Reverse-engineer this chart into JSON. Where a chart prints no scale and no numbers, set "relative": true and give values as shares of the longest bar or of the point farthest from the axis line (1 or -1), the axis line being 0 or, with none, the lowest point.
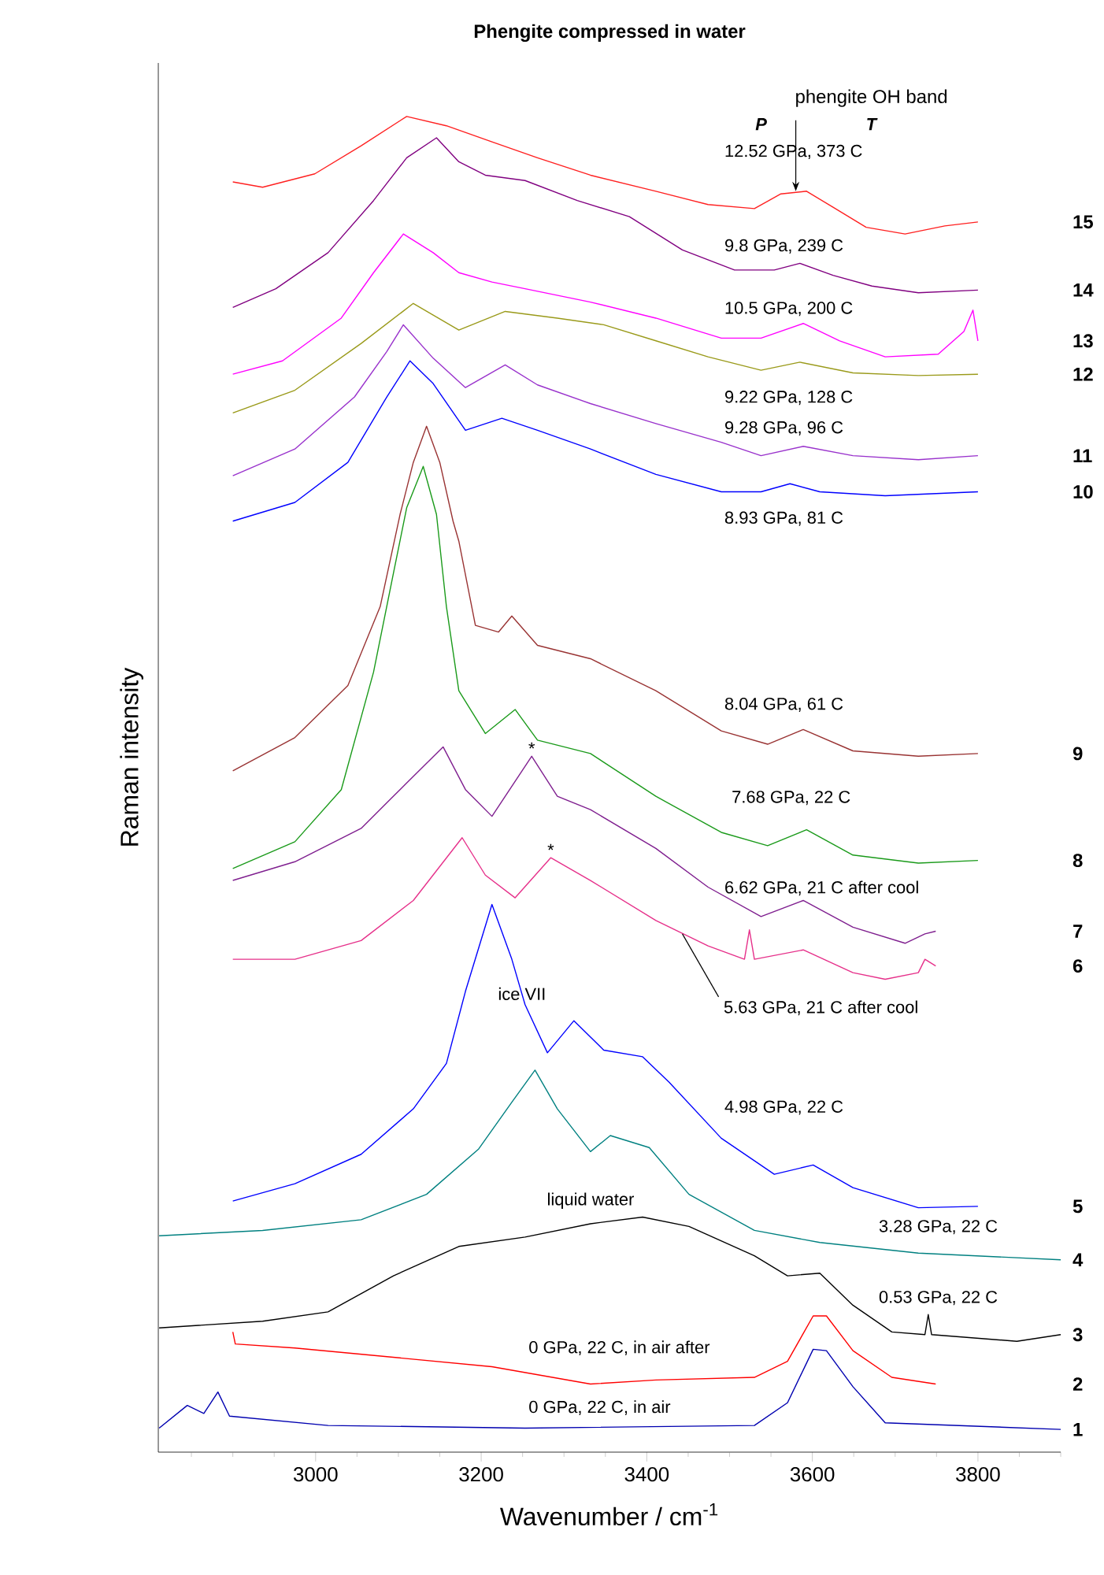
{
  "chart_data": {
    "type": "line",
    "title": "Phengite compressed in water",
    "xlabel": "Wavenumber / cm$^{-1}$",
    "ylabel": "Raman intensity",
    "relative": true,
    "xlim": [
      2810,
      3900
    ],
    "xticks": [
      {
        "value": 2850,
        "label": null
      },
      {
        "value": 2900,
        "label": null
      },
      {
        "value": 2950,
        "label": null
      },
      3000,
      {
        "value": 3050,
        "label": null
      },
      {
        "value": 3100,
        "label": null
      },
      {
        "value": 3150,
        "label": null
      },
      3200,
      {
        "value": 3250,
        "label": null
      },
      {
        "value": 3300,
        "label": null
      },
      {
        "value": 3350,
        "label": null
      },
      3400,
      {
        "value": 3450,
        "label": null
      },
      {
        "value": 3500,
        "label": null
      },
      {
        "value": 3550,
        "label": null
      },
      3600,
      {
        "value": 3650,
        "label": null
      },
      {
        "value": 3700,
        "label": null
      },
      {
        "value": 3750,
        "label": null
      },
      3800,
      {
        "value": 3850,
        "label": null
      },
      {
        "value": 3900,
        "label": null
      }
    ],
    "series": [
      {
        "name": "1",
        "color": "#0000b0",
        "x": [
          2811,
          2845,
          2865,
          2882,
          2896,
          3015,
          3253,
          3530,
          3570,
          3601,
          3617,
          3649,
          3688,
          3900
        ],
        "values": [
          0.018,
          0.035,
          0.029,
          0.045,
          0.027,
          0.02,
          0.018,
          0.02,
          0.037,
          0.077,
          0.076,
          0.049,
          0.022,
          0.017
        ]
      },
      {
        "name": "2",
        "color": "#ff0000",
        "x": [
          2900,
          2903,
          2975,
          3094,
          3213,
          3332,
          3411,
          3530,
          3570,
          3601,
          3617,
          3649,
          3696,
          3749
        ],
        "values": [
          0.09,
          0.081,
          0.078,
          0.071,
          0.064,
          0.051,
          0.054,
          0.056,
          0.068,
          0.102,
          0.102,
          0.076,
          0.056,
          0.051
        ]
      },
      {
        "name": "3",
        "color": "#000000",
        "x": [
          2811,
          2936,
          3015,
          3094,
          3173,
          3253,
          3332,
          3395,
          3451,
          3530,
          3570,
          3609,
          3649,
          3696,
          3736,
          3740,
          3744,
          3847,
          3900
        ],
        "values": [
          0.093,
          0.098,
          0.105,
          0.132,
          0.154,
          0.161,
          0.171,
          0.176,
          0.169,
          0.147,
          0.132,
          0.134,
          0.11,
          0.09,
          0.088,
          0.103,
          0.088,
          0.083,
          0.088
        ]
      },
      {
        "name": "4",
        "color": "#008080",
        "x": [
          2811,
          2936,
          3055,
          3134,
          3197,
          3237,
          3265,
          3292,
          3332,
          3356,
          3403,
          3451,
          3530,
          3609,
          3728,
          3900
        ],
        "values": [
          0.162,
          0.166,
          0.174,
          0.193,
          0.227,
          0.262,
          0.286,
          0.257,
          0.225,
          0.237,
          0.228,
          0.193,
          0.166,
          0.157,
          0.149,
          0.144
        ]
      },
      {
        "name": "5",
        "color": "#0000ff",
        "x": [
          2900,
          2975,
          3055,
          3118,
          3158,
          3181,
          3213,
          3237,
          3253,
          3280,
          3312,
          3348,
          3395,
          3427,
          3490,
          3554,
          3601,
          3649,
          3728,
          3800
        ],
        "values": [
          0.188,
          0.201,
          0.223,
          0.257,
          0.291,
          0.345,
          0.41,
          0.369,
          0.335,
          0.299,
          0.323,
          0.301,
          0.296,
          0.277,
          0.235,
          0.208,
          0.215,
          0.198,
          0.183,
          0.184
        ]
      },
      {
        "name": "6",
        "color": "#e6308a",
        "x": [
          2900,
          2975,
          3055,
          3118,
          3177,
          3205,
          3241,
          3284,
          3332,
          3411,
          3474,
          3518,
          3524,
          3530,
          3589,
          3649,
          3688,
          3728,
          3736,
          3749
        ],
        "values": [
          0.369,
          0.369,
          0.383,
          0.413,
          0.46,
          0.432,
          0.415,
          0.445,
          0.428,
          0.398,
          0.379,
          0.369,
          0.391,
          0.369,
          0.376,
          0.359,
          0.354,
          0.359,
          0.369,
          0.364
        ]
      },
      {
        "name": "7",
        "color": "#7f1f8f",
        "x": [
          2900,
          2975,
          3055,
          3110,
          3154,
          3181,
          3213,
          3261,
          3292,
          3332,
          3411,
          3474,
          3538,
          3589,
          3649,
          3712,
          3736,
          3749
        ],
        "values": [
          0.428,
          0.442,
          0.467,
          0.501,
          0.528,
          0.496,
          0.476,
          0.521,
          0.491,
          0.481,
          0.452,
          0.423,
          0.401,
          0.413,
          0.393,
          0.381,
          0.388,
          0.39
        ]
      },
      {
        "name": "8",
        "color": "#1a9a1a",
        "x": [
          2900,
          2975,
          3031,
          3070,
          3094,
          3110,
          3130,
          3146,
          3158,
          3173,
          3205,
          3241,
          3268,
          3332,
          3411,
          3490,
          3546,
          3593,
          3649,
          3728,
          3800
        ],
        "values": [
          0.437,
          0.457,
          0.496,
          0.584,
          0.658,
          0.707,
          0.738,
          0.702,
          0.633,
          0.57,
          0.538,
          0.556,
          0.533,
          0.523,
          0.491,
          0.464,
          0.454,
          0.466,
          0.447,
          0.441,
          0.443
        ]
      },
      {
        "name": "9",
        "color": "#993333",
        "x": [
          2900,
          2975,
          3039,
          3078,
          3102,
          3118,
          3134,
          3150,
          3166,
          3173,
          3193,
          3221,
          3237,
          3268,
          3332,
          3411,
          3490,
          3546,
          3589,
          3649,
          3728,
          3800
        ],
        "values": [
          0.51,
          0.535,
          0.574,
          0.633,
          0.702,
          0.741,
          0.768,
          0.741,
          0.697,
          0.682,
          0.619,
          0.614,
          0.626,
          0.604,
          0.594,
          0.57,
          0.54,
          0.53,
          0.541,
          0.525,
          0.521,
          0.523
        ]
      },
      {
        "name": "10",
        "color": "#0000ff",
        "x": [
          2900,
          2975,
          3039,
          3086,
          3114,
          3142,
          3181,
          3225,
          3268,
          3332,
          3411,
          3490,
          3538,
          3573,
          3609,
          3688,
          3800
        ],
        "values": [
          0.697,
          0.711,
          0.741,
          0.79,
          0.817,
          0.8,
          0.765,
          0.774,
          0.765,
          0.751,
          0.732,
          0.719,
          0.719,
          0.725,
          0.719,
          0.716,
          0.719
        ]
      },
      {
        "name": "11",
        "color": "#9932cc",
        "x": [
          2900,
          2975,
          3047,
          3086,
          3106,
          3142,
          3181,
          3229,
          3268,
          3332,
          3411,
          3490,
          3538,
          3589,
          3649,
          3728,
          3800
        ],
        "values": [
          0.731,
          0.751,
          0.79,
          0.824,
          0.844,
          0.819,
          0.797,
          0.814,
          0.799,
          0.785,
          0.77,
          0.756,
          0.746,
          0.753,
          0.746,
          0.743,
          0.746
        ]
      },
      {
        "name": "12",
        "color": "#9a9a1a",
        "x": [
          2900,
          2975,
          3055,
          3118,
          3173,
          3229,
          3292,
          3348,
          3411,
          3474,
          3538,
          3585,
          3649,
          3728,
          3800
        ],
        "values": [
          0.778,
          0.795,
          0.83,
          0.86,
          0.84,
          0.854,
          0.849,
          0.844,
          0.832,
          0.82,
          0.81,
          0.816,
          0.808,
          0.806,
          0.807
        ]
      },
      {
        "name": "13",
        "color": "#ff00ff",
        "x": [
          2900,
          2960,
          3031,
          3070,
          3106,
          3142,
          3173,
          3213,
          3253,
          3332,
          3411,
          3490,
          3538,
          3589,
          3633,
          3688,
          3752,
          3783,
          3794,
          3800
        ],
        "values": [
          0.807,
          0.817,
          0.849,
          0.883,
          0.912,
          0.898,
          0.883,
          0.876,
          0.871,
          0.861,
          0.849,
          0.834,
          0.834,
          0.845,
          0.832,
          0.82,
          0.822,
          0.839,
          0.855,
          0.832
        ]
      },
      {
        "name": "14",
        "color": "#800080",
        "x": [
          2900,
          2952,
          3015,
          3070,
          3110,
          3146,
          3173,
          3205,
          3253,
          3316,
          3379,
          3443,
          3506,
          3554,
          3585,
          3625,
          3672,
          3728,
          3800
        ],
        "values": [
          0.857,
          0.871,
          0.898,
          0.937,
          0.969,
          0.984,
          0.966,
          0.956,
          0.952,
          0.937,
          0.925,
          0.9,
          0.885,
          0.885,
          0.89,
          0.881,
          0.873,
          0.868,
          0.87
        ]
      },
      {
        "name": "15",
        "color": "#ff2020",
        "x": [
          2900,
          2936,
          2999,
          3055,
          3110,
          3158,
          3213,
          3268,
          3332,
          3411,
          3474,
          3530,
          3562,
          3593,
          3625,
          3665,
          3712,
          3760,
          3800
        ],
        "values": [
          0.951,
          0.947,
          0.957,
          0.978,
          1.0,
          0.993,
          0.981,
          0.969,
          0.956,
          0.944,
          0.934,
          0.931,
          0.942,
          0.944,
          0.932,
          0.917,
          0.912,
          0.918,
          0.921
        ]
      }
    ],
    "annotations": [
      {
        "text": "phengite OH band",
        "x": 3580,
        "y": 0.944
      },
      "P",
      "T",
      "12.52 GPa, 373 C",
      "9.8 GPa, 239 C",
      "10.5 GPa, 200 C",
      "9.22 GPa, 128 C",
      "9.28 GPa,  96 C",
      "8.93 GPa, 81 C",
      "8.04 GPa, 61 C",
      "7.68 GPa, 22 C",
      {
        "text": "*",
        "x": 3261,
        "y": 0.521
      },
      {
        "text": "*",
        "x": 3284,
        "y": 0.445
      },
      "6.62 GPa, 21 C after cool",
      {
        "text": "5.63 GPa, 21 C after cool",
        "x": 3443,
        "y": 0.388
      },
      "ice VII",
      "4.98 GPa, 22 C",
      "liquid water",
      "3.28 GPa, 22 C",
      "0.53 GPa, 22 C",
      "0 GPa, 22 C, in air after",
      "0 GPa, 22 C, in air"
    ]
  }
}
